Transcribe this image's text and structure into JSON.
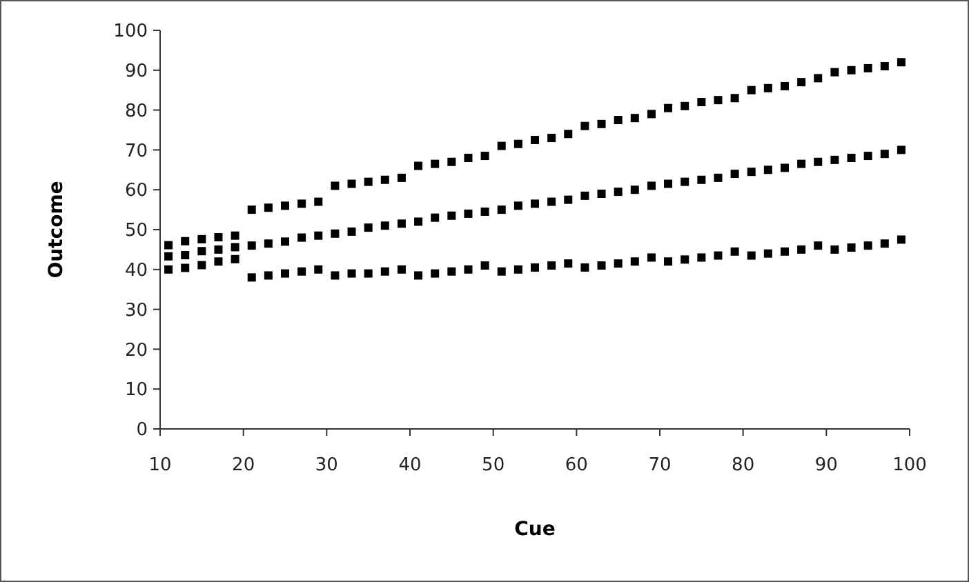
{
  "chart_data": {
    "type": "scatter",
    "xlabel": "Cue",
    "ylabel": "Outcome",
    "marker": "square",
    "grid": false,
    "xlim": [
      10,
      100
    ],
    "xticks": [
      10,
      20,
      30,
      40,
      50,
      60,
      70,
      80,
      90,
      100
    ],
    "ylim": [
      0,
      100
    ],
    "yticks": [
      0,
      10,
      20,
      30,
      40,
      50,
      60,
      70,
      80,
      90,
      100
    ],
    "x": [
      11,
      13,
      15,
      17,
      19,
      21,
      23,
      25,
      27,
      29,
      31,
      33,
      35,
      37,
      39,
      41,
      43,
      45,
      47,
      49,
      51,
      53,
      55,
      57,
      59,
      61,
      63,
      65,
      67,
      69,
      71,
      73,
      75,
      77,
      79,
      81,
      83,
      85,
      87,
      89,
      91,
      93,
      95,
      97,
      99
    ],
    "series": [
      {
        "color": "#000000",
        "values": [
          40,
          40.4,
          41.1,
          42,
          42.6,
          38,
          38.5,
          39,
          39.5,
          40,
          38.5,
          39,
          39,
          39.5,
          40,
          38.5,
          39,
          39.5,
          40,
          41,
          39.5,
          40,
          40.5,
          41,
          41.5,
          40.5,
          41,
          41.5,
          42,
          43,
          42,
          42.5,
          43,
          43.5,
          44.5,
          43.5,
          44,
          44.5,
          45,
          46,
          45,
          45.5,
          46,
          46.5,
          47.5
        ]
      },
      {
        "color": "#000000",
        "values": [
          43.3,
          43.6,
          44.6,
          45,
          45.6,
          46,
          46.5,
          47,
          48,
          48.5,
          49,
          49.5,
          50.5,
          51,
          51.5,
          52,
          53,
          53.5,
          54,
          54.5,
          55,
          56,
          56.5,
          57,
          57.5,
          58.5,
          59,
          59.5,
          60,
          61,
          61.5,
          62,
          62.5,
          63,
          64,
          64.5,
          65,
          65.5,
          66.5,
          67,
          67.5,
          68,
          68.5,
          69,
          70
        ]
      },
      {
        "color": "#000000",
        "values": [
          46.1,
          47.1,
          47.6,
          48.1,
          48.5,
          55,
          55.5,
          56,
          56.5,
          57,
          61,
          61.5,
          62,
          62.5,
          63,
          66,
          66.5,
          67,
          68,
          68.5,
          71,
          71.5,
          72.5,
          73,
          74,
          76,
          76.5,
          77.5,
          78,
          79,
          80.5,
          81,
          82,
          82.5,
          83,
          85,
          85.5,
          86,
          87,
          88,
          89.5,
          90,
          90.5,
          91,
          92
        ]
      }
    ]
  }
}
